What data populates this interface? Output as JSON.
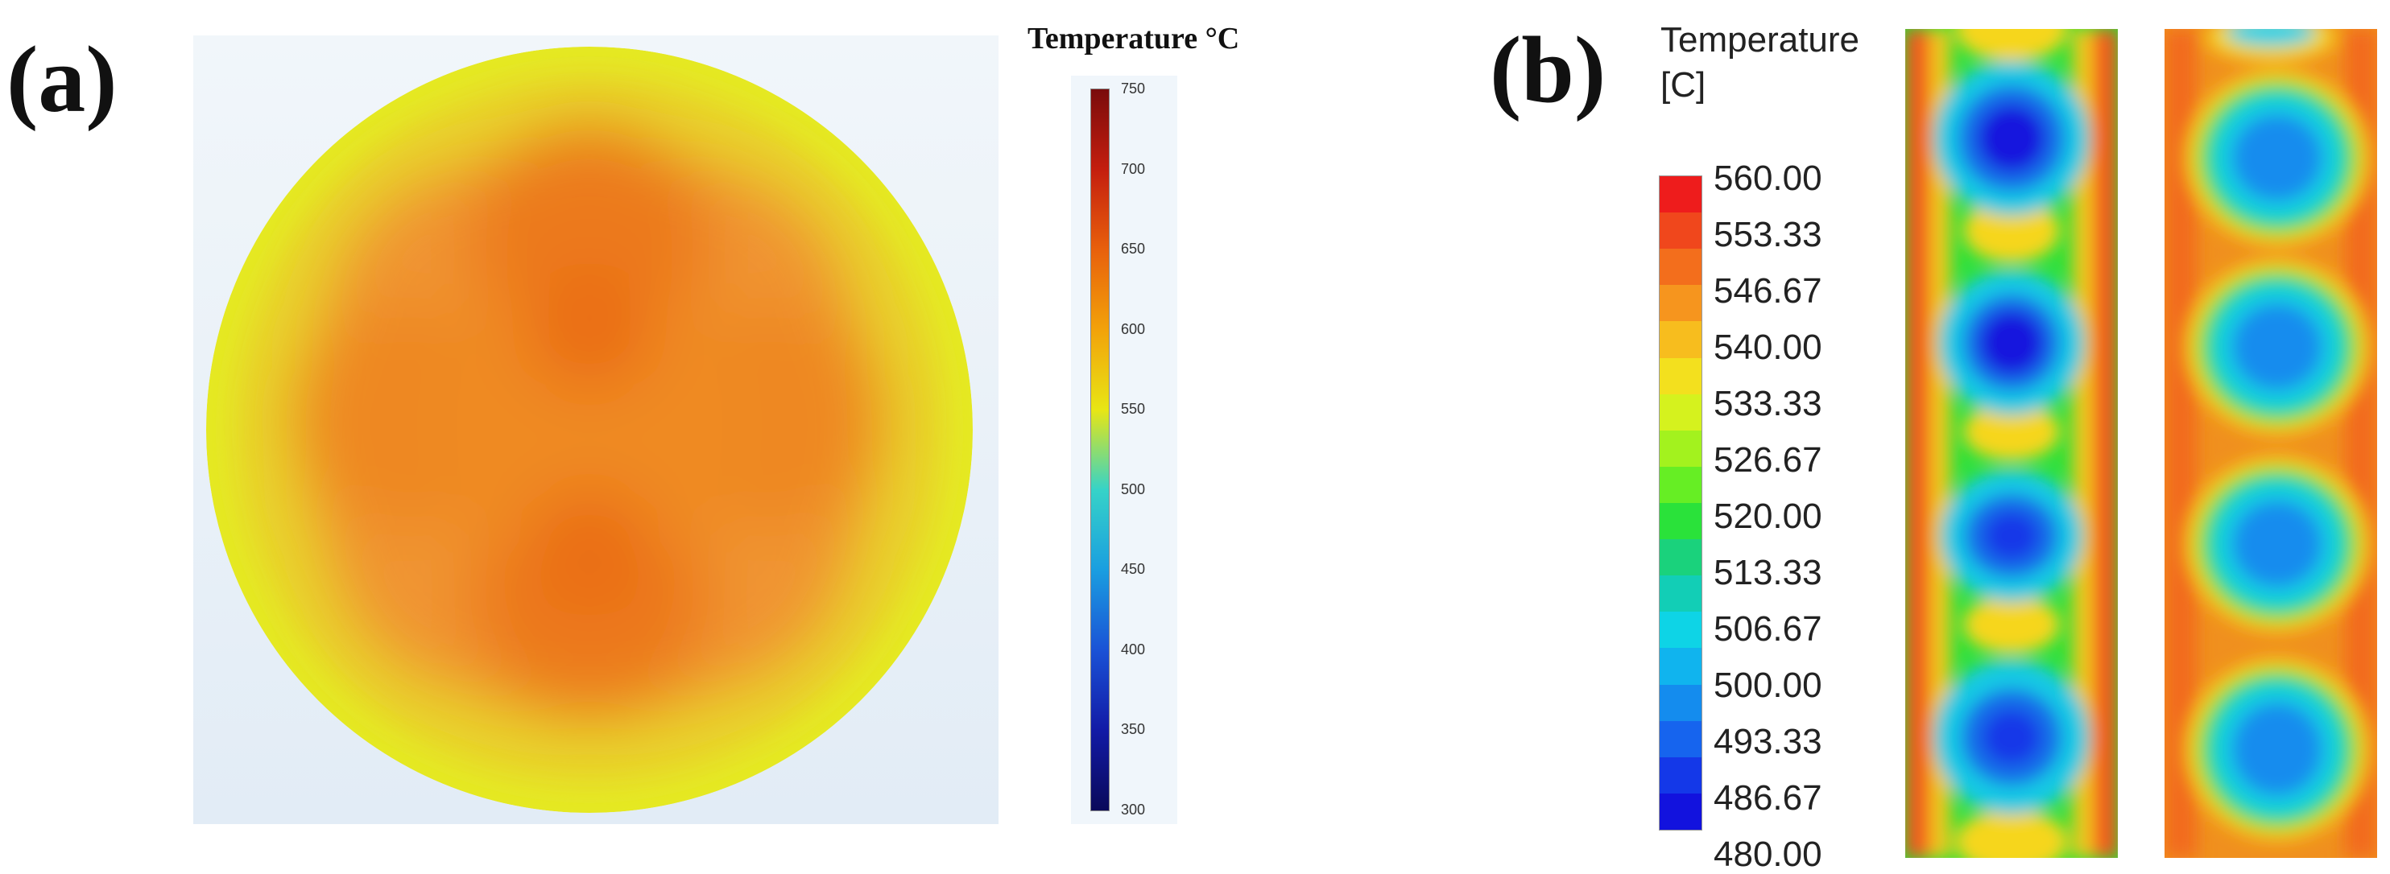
{
  "panel_a": {
    "label": "(a)",
    "legend_title": "Temperature °C",
    "legend_ticks": [
      "750",
      "700",
      "650",
      "600",
      "550",
      "500",
      "450",
      "400",
      "350",
      "300"
    ],
    "colormap": [
      "#7a0c0c",
      "#c41e0e",
      "#e8600c",
      "#f2a20a",
      "#e8e614",
      "#36d3c8",
      "#1a9ee0",
      "#1a52d6",
      "#121aa6",
      "#0a0a5a"
    ]
  },
  "panel_b": {
    "label": "(b)",
    "legend_title": [
      "Temperature",
      "[C]"
    ],
    "legend_ticks": [
      "560.00",
      "553.33",
      "546.67",
      "540.00",
      "533.33",
      "526.67",
      "520.00",
      "513.33",
      "506.67",
      "500.00",
      "493.33",
      "486.67",
      "480.00"
    ],
    "colormap": [
      "#ee1c1c",
      "#f0471c",
      "#f36e1c",
      "#f6951e",
      "#f7bd1e",
      "#f3e01e",
      "#d5f21e",
      "#a3f21e",
      "#66ee24",
      "#2ae23a",
      "#1ad27c",
      "#12ceb6",
      "#0ed4e6",
      "#10b4ee",
      "#148cee",
      "#1664ee",
      "#1438e8",
      "#1212de"
    ]
  }
}
